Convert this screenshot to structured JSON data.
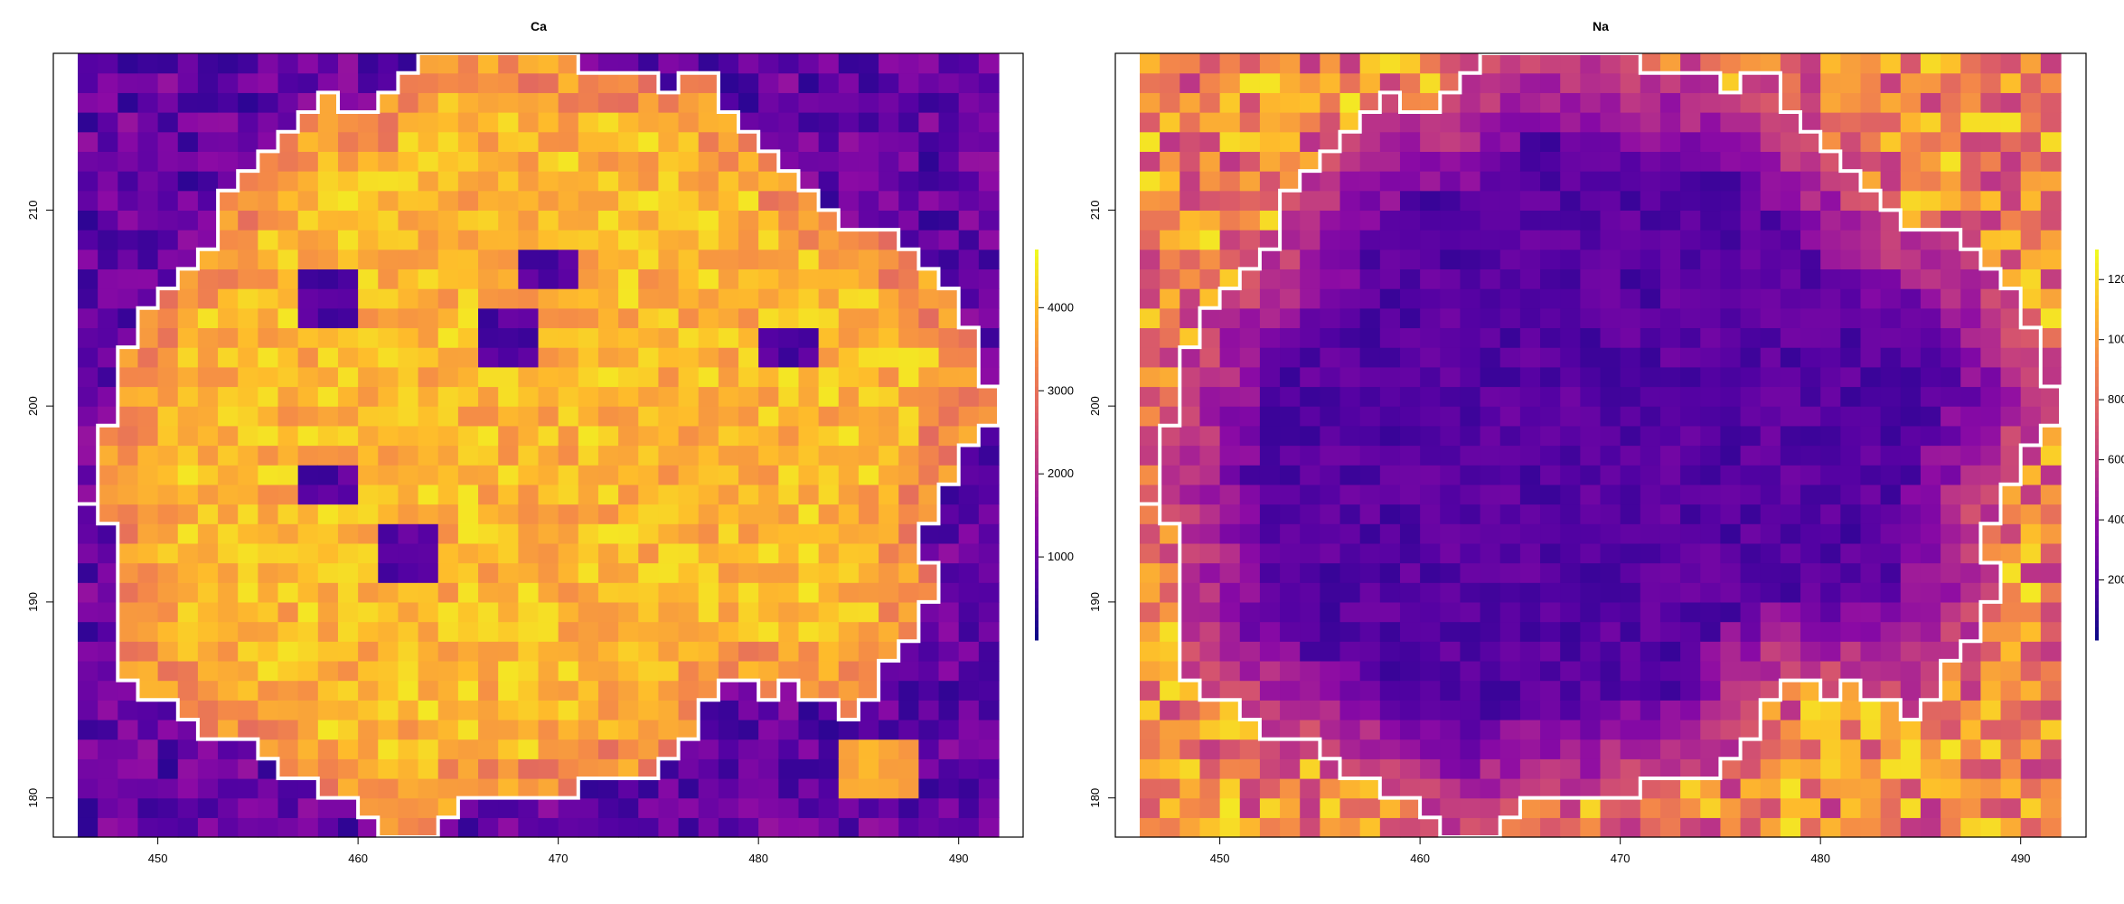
{
  "chart_data": [
    {
      "type": "heatmap",
      "title": "Ca",
      "xlabel": "",
      "ylabel": "",
      "x_range": [
        446,
        492
      ],
      "y_range": [
        178,
        218
      ],
      "x_ticks": [
        450,
        460,
        470,
        480,
        490
      ],
      "y_ticks": [
        180,
        190,
        200,
        210
      ],
      "colorbar": {
        "palette": "plasma",
        "min": 0,
        "max": 4700,
        "ticks": [
          1000,
          2000,
          3000,
          4000
        ]
      },
      "inside_value_mean": 3950,
      "outside_value_mean": 900,
      "low_spots": [
        [
          458.5,
          205.5
        ],
        [
          467.5,
          203.5
        ],
        [
          469.5,
          207
        ],
        [
          481.5,
          203
        ],
        [
          458.5,
          196
        ],
        [
          462.5,
          192.5
        ]
      ],
      "high_patch": {
        "x": [
          484,
          488
        ],
        "y": [
          180,
          183
        ]
      },
      "boundary_line_color": "#ffffff"
    },
    {
      "type": "heatmap",
      "title": "Na",
      "xlabel": "",
      "ylabel": "",
      "x_range": [
        446,
        492
      ],
      "y_range": [
        178,
        218
      ],
      "x_ticks": [
        450,
        460,
        470,
        480,
        490
      ],
      "y_ticks": [
        180,
        190,
        200,
        210
      ],
      "colorbar": {
        "palette": "plasma",
        "min": 0,
        "max": 1300,
        "ticks": [
          200,
          400,
          600,
          800,
          1000,
          1200
        ]
      },
      "inside_value_mean": 200,
      "outside_value_mean": 900,
      "ring_value_mean": 650,
      "boundary_line_color": "#ffffff"
    }
  ]
}
